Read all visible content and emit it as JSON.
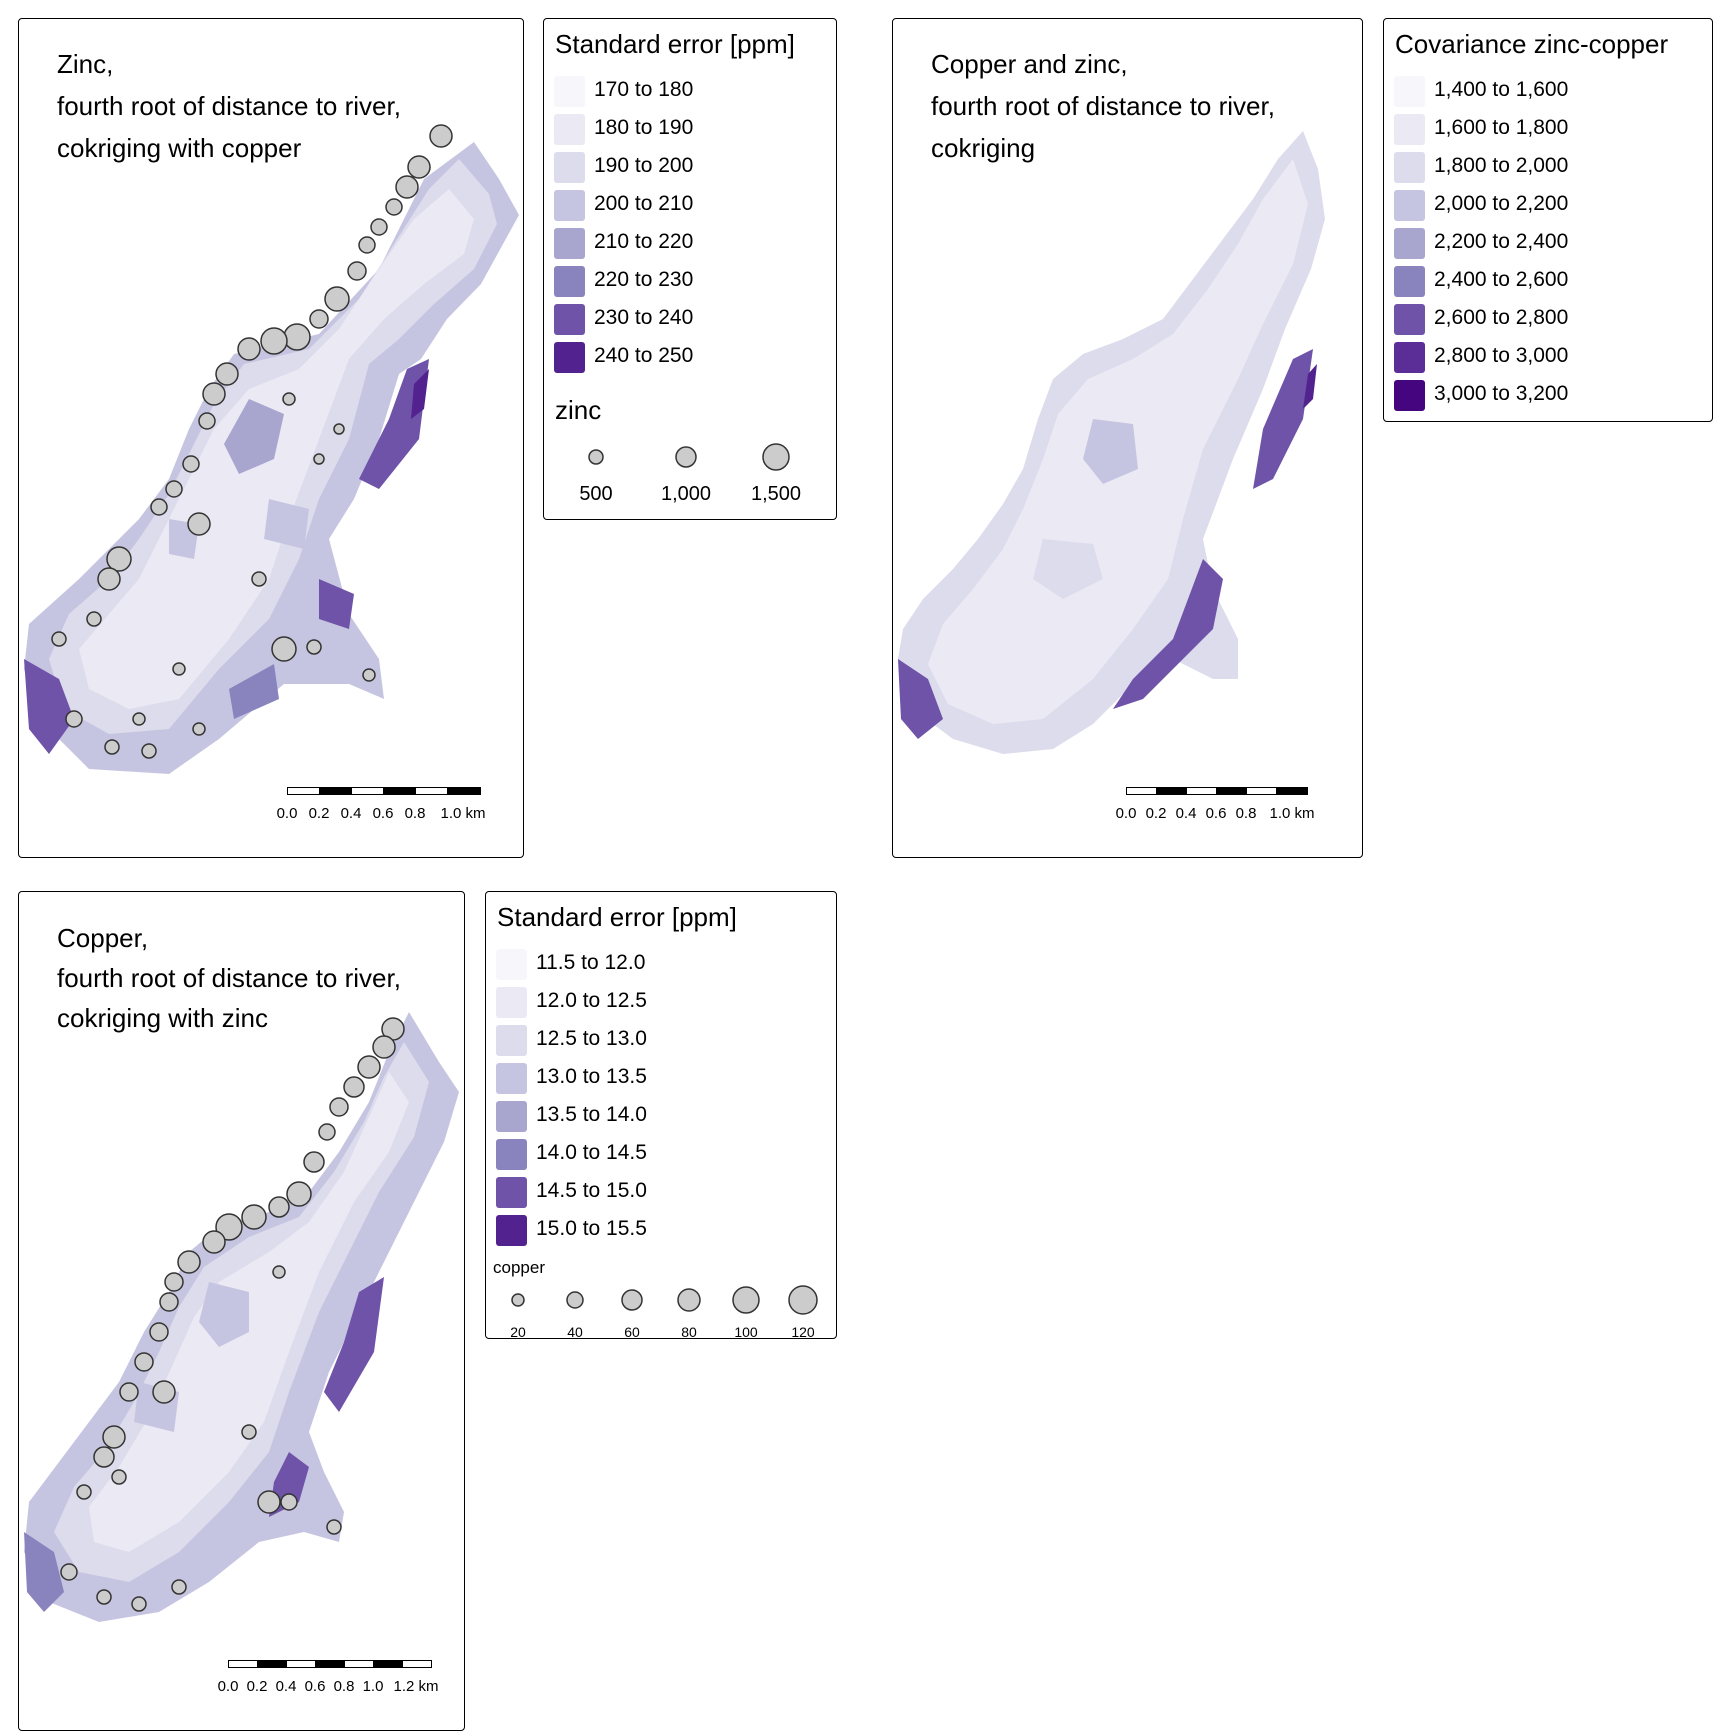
{
  "panels": [
    {
      "title_lines": [
        "Zinc,",
        "fourth root of distance to river,",
        "cokriging with copper"
      ],
      "scale_ticks": [
        "0.0",
        "0.2",
        "0.4",
        "0.6",
        "0.8",
        "1.0 km"
      ],
      "legend": {
        "title": "Standard error [ppm]",
        "classes": [
          {
            "label": "170 to 180",
            "color": "#f7f6fb"
          },
          {
            "label": "180 to 190",
            "color": "#ebe9f4"
          },
          {
            "label": "190 to 200",
            "color": "#dddcec"
          },
          {
            "label": "200 to 210",
            "color": "#c6c5e1"
          },
          {
            "label": "210 to 220",
            "color": "#a8a5cf"
          },
          {
            "label": "220 to 230",
            "color": "#8984bd"
          },
          {
            "label": "230 to 240",
            "color": "#6e53a8"
          },
          {
            "label": "240 to 250",
            "color": "#52238f"
          }
        ],
        "size_title": "zinc",
        "size_values": [
          "500",
          "1,000",
          "1,500"
        ]
      }
    },
    {
      "title_lines": [
        "Copper and zinc,",
        "fourth root of distance to river,",
        "cokriging"
      ],
      "scale_ticks": [
        "0.0",
        "0.2",
        "0.4",
        "0.6",
        "0.8",
        "1.0 km"
      ],
      "legend": {
        "title": "Covariance zinc-copper",
        "classes": [
          {
            "label": "1,400 to 1,600",
            "color": "#f7f6fb"
          },
          {
            "label": "1,600 to 1,800",
            "color": "#ebe9f4"
          },
          {
            "label": "1,800 to 2,000",
            "color": "#dddcec"
          },
          {
            "label": "2,000 to 2,200",
            "color": "#c6c5e1"
          },
          {
            "label": "2,200 to 2,400",
            "color": "#a8a5cf"
          },
          {
            "label": "2,400 to 2,600",
            "color": "#8984bd"
          },
          {
            "label": "2,600 to 2,800",
            "color": "#6e53a8"
          },
          {
            "label": "2,800 to 3,000",
            "color": "#5a2d97"
          },
          {
            "label": "3,000 to 3,200",
            "color": "#45057f"
          }
        ]
      }
    },
    {
      "title_lines": [
        "Copper,",
        "fourth root of distance to river,",
        "cokriging with zinc"
      ],
      "scale_ticks": [
        "0.0",
        "0.2",
        "0.4",
        "0.6",
        "0.8",
        "1.0",
        "1.2 km"
      ],
      "legend": {
        "title": "Standard error [ppm]",
        "classes": [
          {
            "label": "11.5 to 12.0",
            "color": "#f7f6fb"
          },
          {
            "label": "12.0 to 12.5",
            "color": "#ebe9f4"
          },
          {
            "label": "12.5 to 13.0",
            "color": "#dddcec"
          },
          {
            "label": "13.0 to 13.5",
            "color": "#c6c5e1"
          },
          {
            "label": "13.5 to 14.0",
            "color": "#a8a5cf"
          },
          {
            "label": "14.0 to 14.5",
            "color": "#8984bd"
          },
          {
            "label": "14.5 to 15.0",
            "color": "#6e53a8"
          },
          {
            "label": "15.0 to 15.5",
            "color": "#52238f"
          }
        ],
        "size_title": "copper",
        "size_values": [
          "20",
          "40",
          "60",
          "80",
          "100",
          "120"
        ]
      }
    }
  ]
}
